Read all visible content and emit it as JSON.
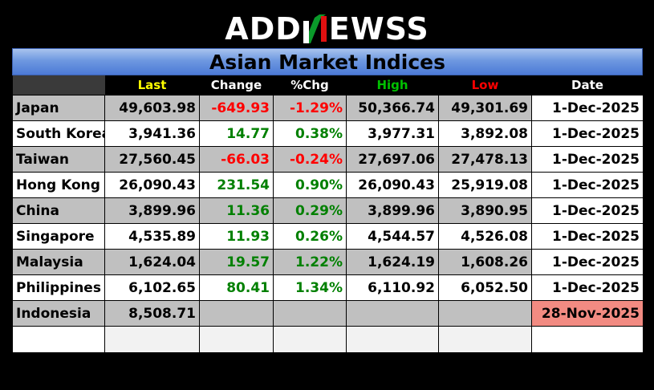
{
  "logo": {
    "left": "ADD",
    "n": "N",
    "right": "EWSS"
  },
  "title": "Asian Market Indices",
  "headers": [
    "",
    "Last",
    "Change",
    "%Chg",
    "High",
    "Low",
    "Date"
  ],
  "colors": {
    "up": "#008000",
    "down": "#ff0000",
    "last_header": "#ffff00",
    "high_header": "#00c000",
    "low_header": "#ff0000",
    "stale_date": "#f28b82"
  },
  "rows": [
    {
      "name": "Japan",
      "last": "49,603.98",
      "change": "-649.93",
      "pct": "-1.29%",
      "high": "50,366.74",
      "low": "49,301.69",
      "date": "1-Dec-2025",
      "dir": "down"
    },
    {
      "name": "South Korea",
      "last": "3,941.36",
      "change": "14.77",
      "pct": "0.38%",
      "high": "3,977.31",
      "low": "3,892.08",
      "date": "1-Dec-2025",
      "dir": "up"
    },
    {
      "name": "Taiwan",
      "last": "27,560.45",
      "change": "-66.03",
      "pct": "-0.24%",
      "high": "27,697.06",
      "low": "27,478.13",
      "date": "1-Dec-2025",
      "dir": "down"
    },
    {
      "name": "Hong Kong",
      "last": "26,090.43",
      "change": "231.54",
      "pct": "0.90%",
      "high": "26,090.43",
      "low": "25,919.08",
      "date": "1-Dec-2025",
      "dir": "up"
    },
    {
      "name": "China",
      "last": "3,899.96",
      "change": "11.36",
      "pct": "0.29%",
      "high": "3,899.96",
      "low": "3,890.95",
      "date": "1-Dec-2025",
      "dir": "up"
    },
    {
      "name": "Singapore",
      "last": "4,535.89",
      "change": "11.93",
      "pct": "0.26%",
      "high": "4,544.57",
      "low": "4,526.08",
      "date": "1-Dec-2025",
      "dir": "up"
    },
    {
      "name": "Malaysia",
      "last": "1,624.04",
      "change": "19.57",
      "pct": "1.22%",
      "high": "1,624.19",
      "low": "1,608.26",
      "date": "1-Dec-2025",
      "dir": "up"
    },
    {
      "name": "Philippines",
      "last": "6,102.65",
      "change": "80.41",
      "pct": "1.34%",
      "high": "6,110.92",
      "low": "6,052.50",
      "date": "1-Dec-2025",
      "dir": "up"
    },
    {
      "name": "Indonesia",
      "last": "8,508.71",
      "change": "",
      "pct": "",
      "high": "",
      "low": "",
      "date": "28-Nov-2025",
      "dir": "none",
      "stale": true
    }
  ]
}
